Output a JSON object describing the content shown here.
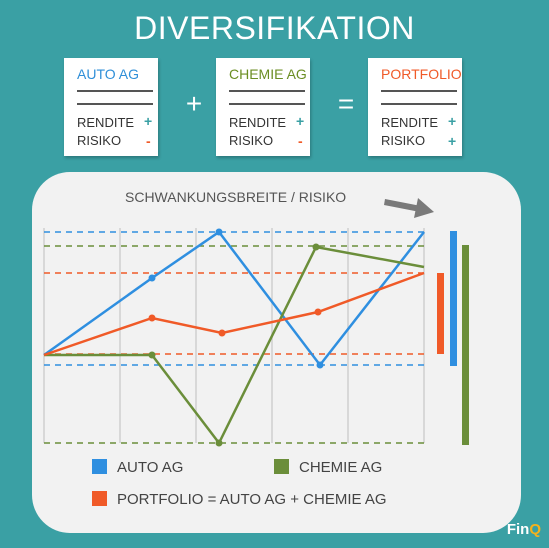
{
  "title": "DIVERSIFIKATION",
  "cards": {
    "auto": {
      "name": "AUTO AG",
      "rendite_label": "RENDITE",
      "rendite_sign": "+",
      "risiko_label": "RISIKO",
      "risiko_sign": "-",
      "name_color": "#2f8fd8"
    },
    "chemie": {
      "name": "CHEMIE AG",
      "rendite_label": "RENDITE",
      "rendite_sign": "+",
      "risiko_label": "RISIKO",
      "risiko_sign": "-",
      "name_color": "#6b8e23"
    },
    "portfolio": {
      "name": "PORTFOLIO",
      "rendite_label": "RENDITE",
      "rendite_sign": "+",
      "risiko_label": "RISIKO",
      "risiko_sign": "+",
      "name_color": "#f05a28"
    }
  },
  "operators": {
    "plus": "+",
    "equals": "="
  },
  "chart": {
    "annotation": "SCHWANKUNGSBREITE / RISIKO"
  },
  "legend": {
    "auto": "AUTO AG",
    "chemie": "CHEMIE AG",
    "portfolio": "PORTFOLIO = AUTO AG + CHEMIE AG"
  },
  "brand": {
    "main": "Fin",
    "accent": "Q"
  },
  "colors": {
    "background": "#3aa0a4",
    "auto": "#2f8fe0",
    "chemie": "#6b8e3a",
    "portfolio": "#f05a28",
    "plus_sign": "#3aa0a4",
    "minus_sign": "#f05a28"
  }
}
